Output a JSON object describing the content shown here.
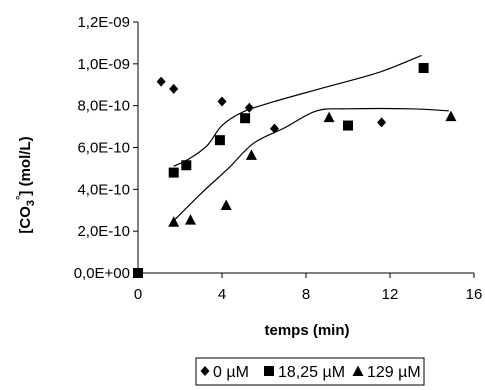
{
  "chart_data": {
    "type": "scatter",
    "xlabel": "temps (min)",
    "ylabel_main": "[CO",
    "ylabel_sub": "3",
    "ylabel_sup": "°",
    "ylabel_rest": "] (mol/L)",
    "xlim": [
      0,
      16
    ],
    "ylim": [
      0,
      1.2e-09
    ],
    "x_ticks": [
      0,
      4,
      8,
      12,
      16
    ],
    "x_tick_labels": [
      "0",
      "4",
      "8",
      "12",
      "16"
    ],
    "y_ticks": [
      0,
      2e-10,
      4e-10,
      6e-10,
      8e-10,
      1e-09,
      1.2e-09
    ],
    "y_tick_labels": [
      "0,0E+00",
      "2,0E-10",
      "4,0E-10",
      "6,0E-10",
      "8,0E-10",
      "1,0E-09",
      "1,2E-09"
    ],
    "grid": false,
    "legend_placement": "bottom",
    "series": [
      {
        "name": "0 µM",
        "marker": "diamond",
        "points": [
          [
            1.1,
            9.15e-10
          ],
          [
            1.7,
            8.8e-10
          ],
          [
            4.0,
            8.2e-10
          ],
          [
            5.3,
            7.9e-10
          ],
          [
            6.5,
            6.9e-10
          ],
          [
            11.6,
            7.2e-10
          ]
        ]
      },
      {
        "name": "18,25 µM",
        "marker": "square",
        "points": [
          [
            0,
            0
          ],
          [
            1.7,
            4.8e-10
          ],
          [
            2.3,
            5.15e-10
          ],
          [
            3.9,
            6.35e-10
          ],
          [
            5.1,
            7.4e-10
          ],
          [
            10.0,
            7.05e-10
          ],
          [
            13.6,
            9.8e-10
          ]
        ]
      },
      {
        "name": "129 µM",
        "marker": "triangle",
        "points": [
          [
            1.7,
            2.45e-10
          ],
          [
            2.5,
            2.55e-10
          ],
          [
            4.2,
            3.25e-10
          ],
          [
            5.4,
            5.65e-10
          ],
          [
            9.1,
            7.45e-10
          ],
          [
            14.9,
            7.5e-10
          ]
        ]
      }
    ],
    "fit_curves": [
      {
        "points": [
          [
            1.7,
            5.1e-10
          ],
          [
            2.5,
            5.5e-10
          ],
          [
            3.3,
            6.1e-10
          ],
          [
            4.0,
            7.05e-10
          ],
          [
            5.0,
            7.7e-10
          ],
          [
            6.5,
            8.2e-10
          ],
          [
            9.0,
            8.9e-10
          ],
          [
            11.5,
            9.6e-10
          ],
          [
            13.5,
            1.04e-09
          ]
        ]
      },
      {
        "points": [
          [
            1.7,
            2.5e-10
          ],
          [
            3.0,
            3.8e-10
          ],
          [
            4.3,
            5e-10
          ],
          [
            5.5,
            6.2e-10
          ],
          [
            7.0,
            6.95e-10
          ],
          [
            8.5,
            7.75e-10
          ],
          [
            10.0,
            7.85e-10
          ],
          [
            13.0,
            7.85e-10
          ],
          [
            14.8,
            7.75e-10
          ]
        ]
      }
    ]
  }
}
